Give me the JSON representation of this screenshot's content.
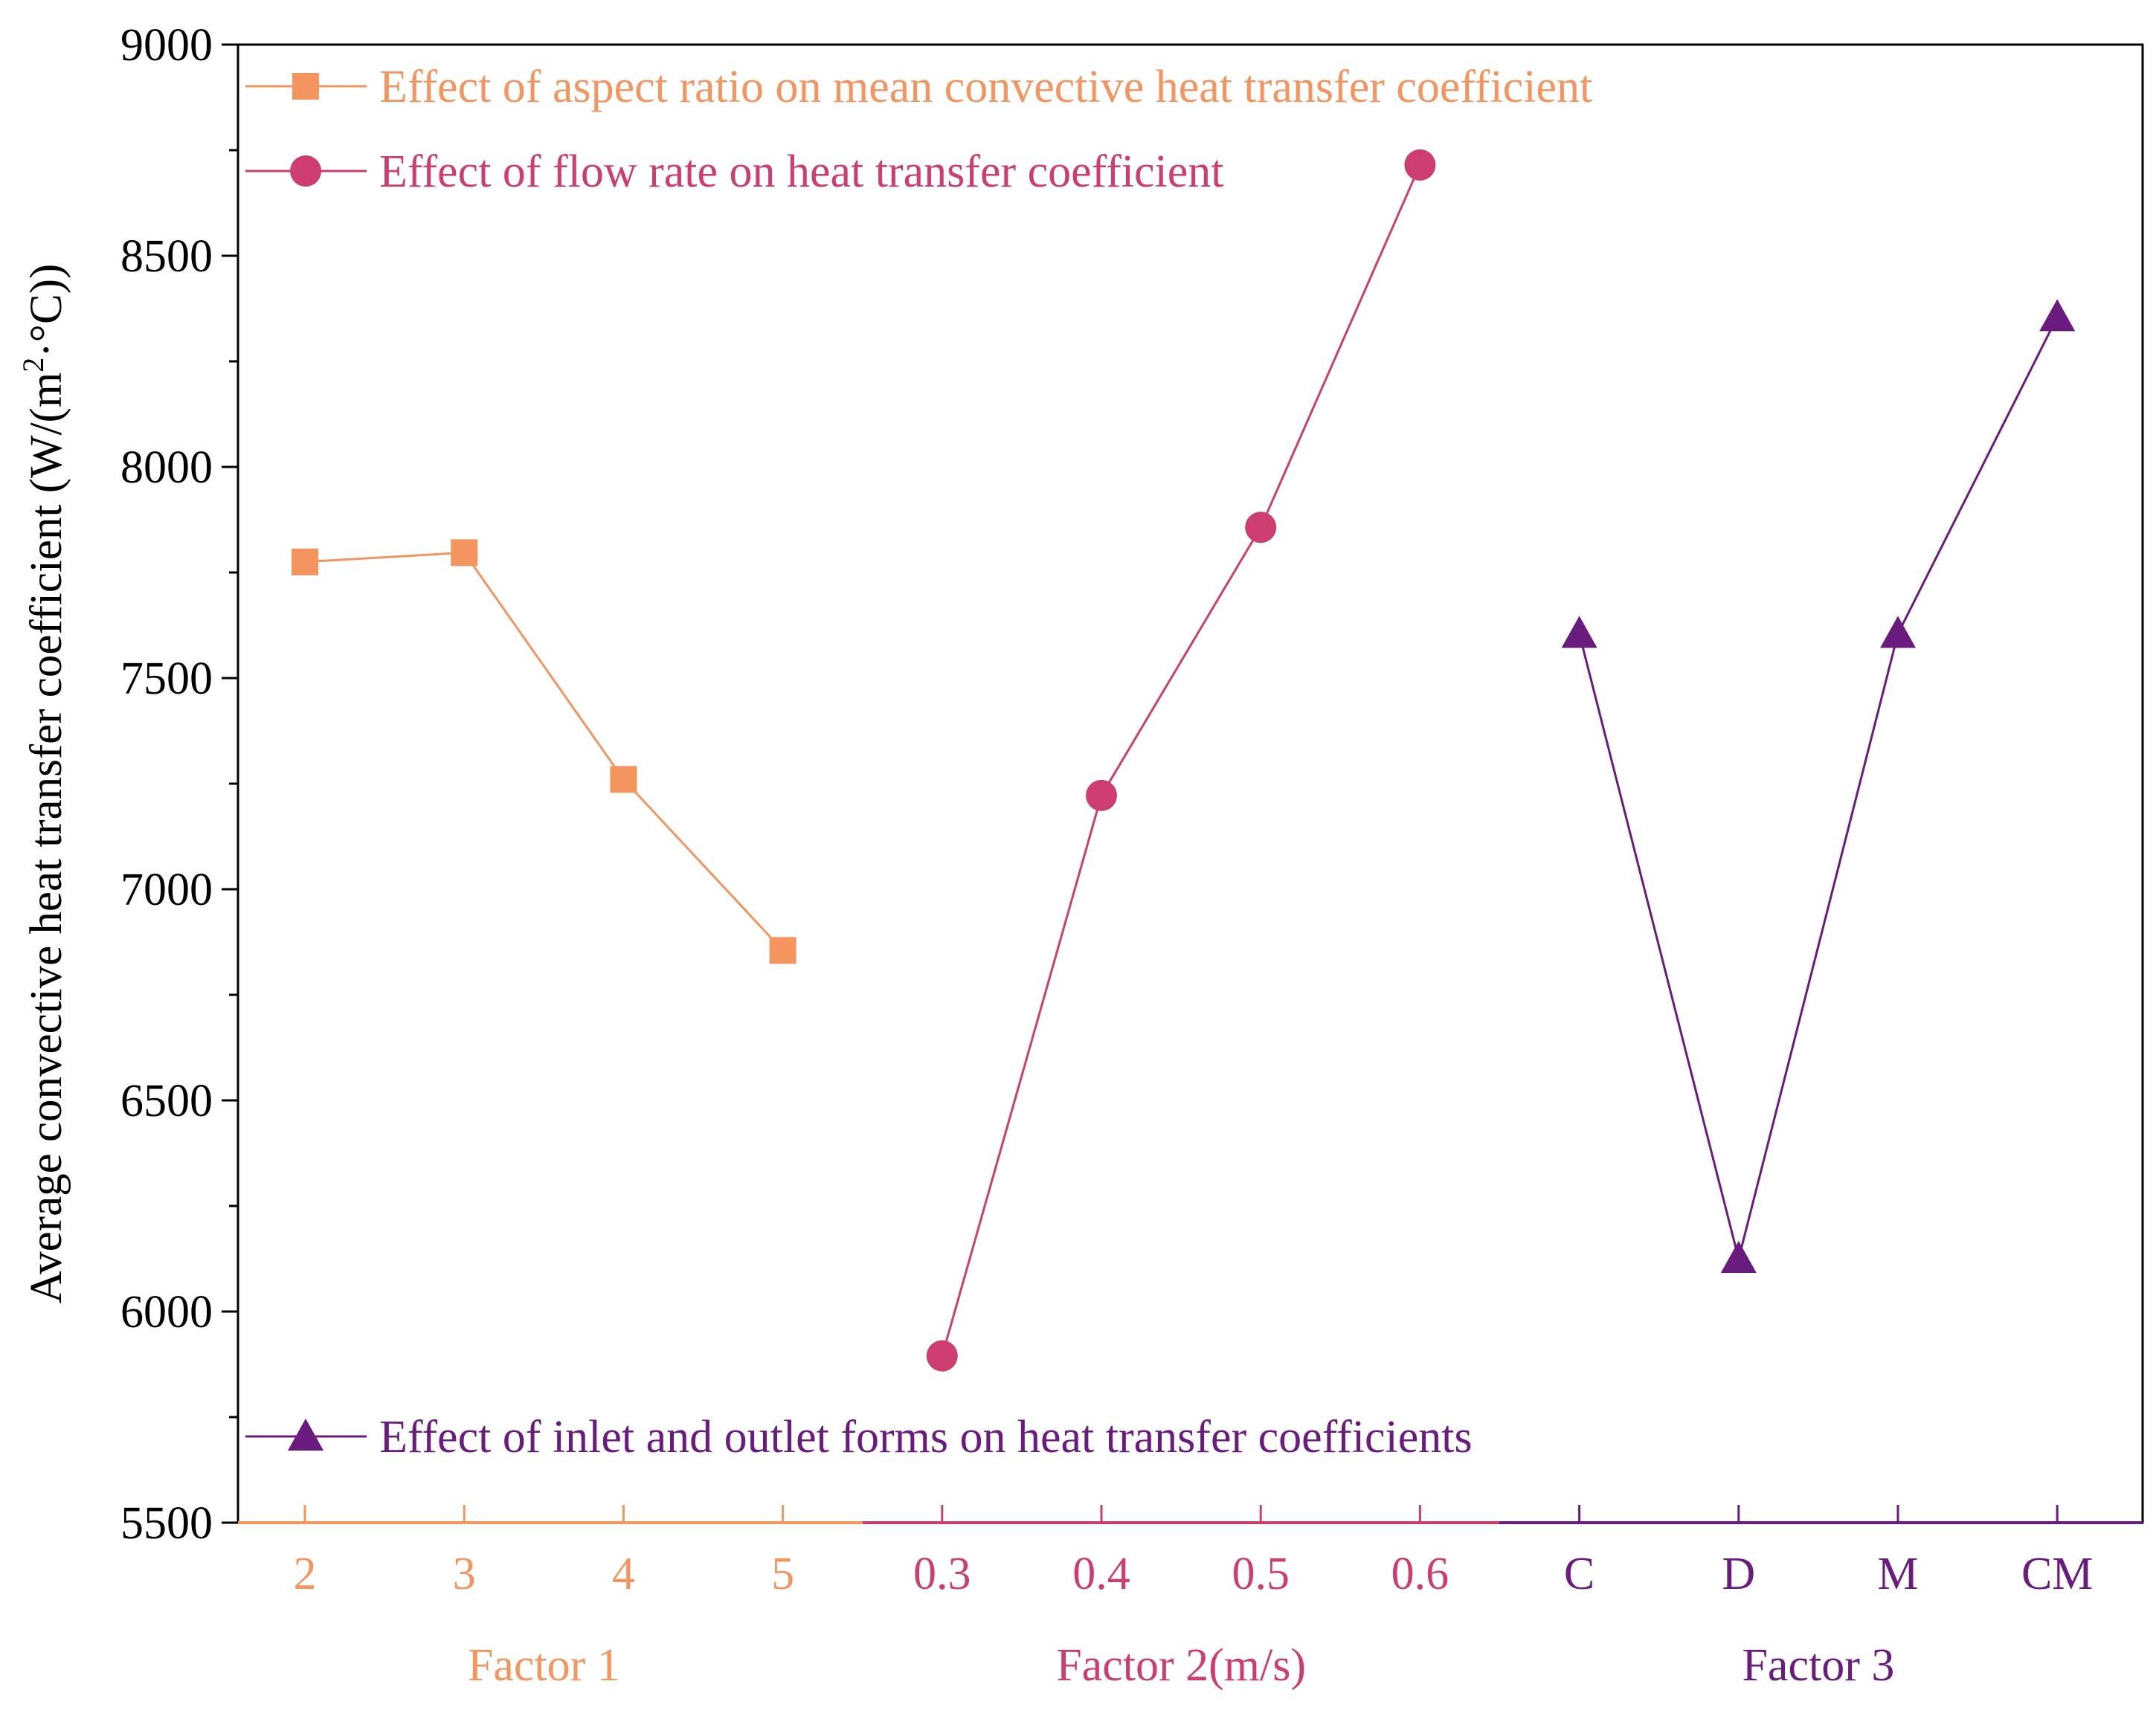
{
  "chart_data": {
    "type": "line",
    "ylabel": "Average convective heat transfer coefficient (W/(m",
    "ylabel_sup": "2",
    "ylabel_tail": "·°C))",
    "ylim": [
      5500,
      9000
    ],
    "yticks": [
      5500,
      6000,
      6500,
      7000,
      7500,
      8000,
      8500,
      9000
    ],
    "groups": [
      {
        "name": "Factor 1",
        "color": "#F4955F",
        "marker": "square",
        "legend": "Effect of aspect ratio on mean convective heat transfer coefficient",
        "categories": [
          "2",
          "3",
          "4",
          "5"
        ],
        "values": [
          7775,
          7797,
          7260,
          6855
        ]
      },
      {
        "name": "Factor 2(m/s)",
        "color": "#CE3D6F",
        "marker": "circle",
        "legend": "Effect of flow rate on heat transfer coefficient",
        "categories": [
          "0.3",
          "0.4",
          "0.5",
          "0.6"
        ],
        "values": [
          5895,
          7222,
          7857,
          8715
        ]
      },
      {
        "name": "Factor 3",
        "color": "#6A1B7E",
        "marker": "triangle",
        "legend": "Effect of inlet and outlet forms on heat transfer coefficients",
        "categories": [
          "C",
          "D",
          "M",
          "CM"
        ],
        "values": [
          7605,
          6125,
          7605,
          8355
        ]
      }
    ]
  }
}
